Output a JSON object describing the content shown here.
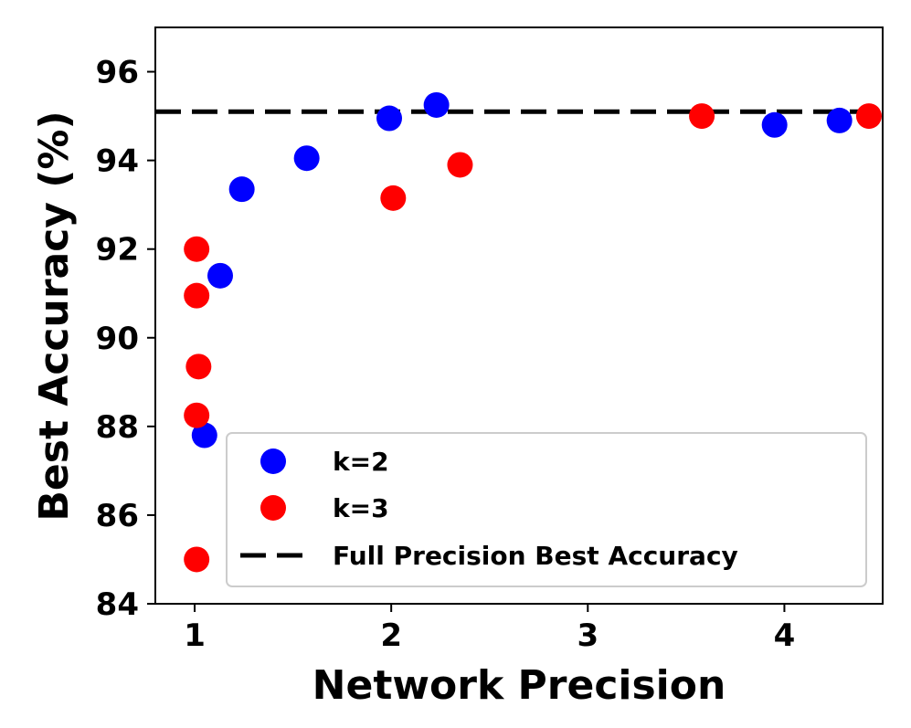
{
  "chart_data": {
    "type": "scatter",
    "xlabel": "Network Precision",
    "ylabel": "Best Accuracy (%)",
    "xlim": [
      0.8,
      4.5
    ],
    "ylim": [
      84,
      97
    ],
    "x_ticks": [
      1,
      2,
      3,
      4
    ],
    "y_ticks": [
      84,
      86,
      88,
      90,
      92,
      94,
      96
    ],
    "x_tick_labels": [
      "1",
      "2",
      "3",
      "4"
    ],
    "y_tick_labels": [
      "84",
      "86",
      "88",
      "90",
      "92",
      "94",
      "96"
    ],
    "series": [
      {
        "name": "k=2",
        "color": "#0000ff",
        "points": [
          {
            "x": 1.05,
            "y": 87.8
          },
          {
            "x": 1.13,
            "y": 91.4
          },
          {
            "x": 1.24,
            "y": 93.35
          },
          {
            "x": 1.57,
            "y": 94.05
          },
          {
            "x": 1.99,
            "y": 94.95
          },
          {
            "x": 2.23,
            "y": 95.25
          },
          {
            "x": 3.95,
            "y": 94.8
          },
          {
            "x": 4.28,
            "y": 94.9
          }
        ]
      },
      {
        "name": "k=3",
        "color": "#ff0000",
        "points": [
          {
            "x": 1.01,
            "y": 85.0
          },
          {
            "x": 1.01,
            "y": 88.25
          },
          {
            "x": 1.02,
            "y": 89.35
          },
          {
            "x": 1.01,
            "y": 90.95
          },
          {
            "x": 1.01,
            "y": 92.0
          },
          {
            "x": 2.01,
            "y": 93.15
          },
          {
            "x": 2.35,
            "y": 93.9
          },
          {
            "x": 3.58,
            "y": 95.0
          },
          {
            "x": 4.43,
            "y": 95.0
          }
        ]
      }
    ],
    "reference_line": {
      "name": "Full Precision Best Accuracy",
      "y": 95.1,
      "color": "#000000",
      "style": "dashed"
    },
    "legend": {
      "placement": "lower-right",
      "entries": [
        "k=2",
        "k=3",
        "Full Precision Best Accuracy"
      ]
    },
    "grid": false
  }
}
